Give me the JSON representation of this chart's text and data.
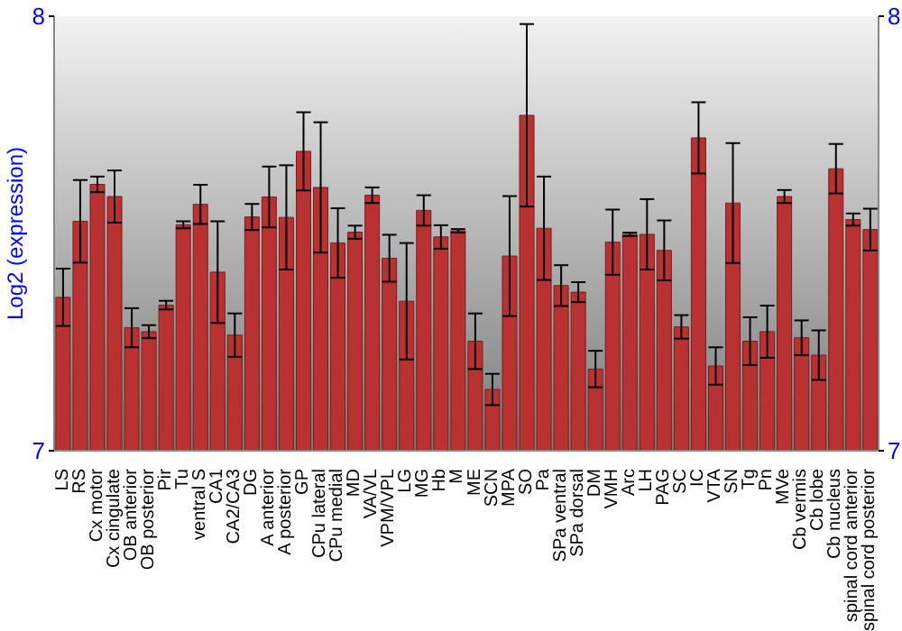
{
  "chart_data": {
    "type": "bar",
    "ylabel": "Log2 (expression)",
    "categories": [
      "LS",
      "RS",
      "Cx motor",
      "Cx cingulate",
      "OB anterior",
      "OB posterior",
      "Pir",
      "Tu",
      "ventral S",
      "CA1",
      "CA2/CA3",
      "DG",
      "A anterior",
      "A posterior",
      "GP",
      "CPu lateral",
      "CPu medial",
      "MD",
      "VA/VL",
      "VPM/VPL",
      "LG",
      "MG",
      "Hb",
      "M",
      "ME",
      "SCN",
      "MPA",
      "SO",
      "Pa",
      "SPa ventral",
      "SPa dorsal",
      "DM",
      "VMH",
      "Arc",
      "LH",
      "PAG",
      "SC",
      "IC",
      "VTA",
      "SN",
      "Tg",
      "Pn",
      "MVe",
      "Cb vermis",
      "Cb lobe",
      "Cb nucleus",
      "spinal cord anterior",
      "spinal cord posterior"
    ],
    "values": [
      7.353,
      7.528,
      7.613,
      7.585,
      7.283,
      7.274,
      7.335,
      7.52,
      7.567,
      7.411,
      7.266,
      7.538,
      7.584,
      7.537,
      7.689,
      7.606,
      7.478,
      7.503,
      7.588,
      7.443,
      7.344,
      7.553,
      7.492,
      7.506,
      7.252,
      7.141,
      7.448,
      7.772,
      7.512,
      7.38,
      7.365,
      7.188,
      7.48,
      7.498,
      7.498,
      7.461,
      7.285,
      7.72,
      7.195,
      7.57,
      7.252,
      7.274,
      7.585,
      7.26,
      7.22,
      7.649,
      7.532,
      7.509
    ],
    "errors": [
      0.066,
      0.095,
      0.018,
      0.06,
      0.045,
      0.015,
      0.01,
      0.008,
      0.045,
      0.117,
      0.05,
      0.03,
      0.07,
      0.12,
      0.09,
      0.15,
      0.08,
      0.015,
      0.018,
      0.054,
      0.134,
      0.035,
      0.027,
      0.004,
      0.064,
      0.036,
      0.138,
      0.21,
      0.119,
      0.047,
      0.023,
      0.042,
      0.075,
      0.004,
      0.081,
      0.069,
      0.027,
      0.082,
      0.043,
      0.138,
      0.055,
      0.06,
      0.015,
      0.04,
      0.057,
      0.057,
      0.014,
      0.048
    ],
    "color": "#b83232",
    "ylim": [
      7,
      8
    ],
    "yticks": [
      7,
      8
    ],
    "y2lim": [
      7,
      8
    ],
    "y2ticks": [
      7,
      8
    ]
  }
}
